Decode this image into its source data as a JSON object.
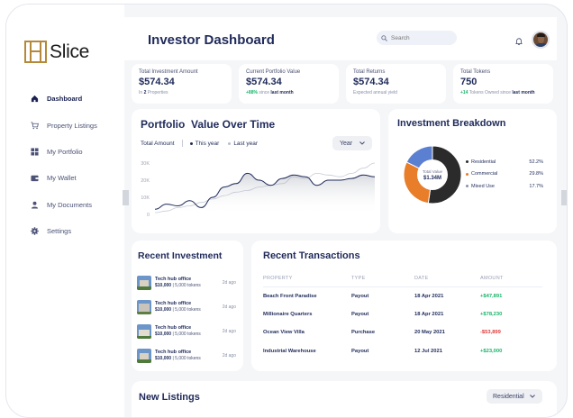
{
  "app": {
    "name": "Slice"
  },
  "sidebar": {
    "items": [
      {
        "label": "Dashboard",
        "icon": "home-icon",
        "active": true
      },
      {
        "label": "Property Listings",
        "icon": "cart-icon",
        "active": false
      },
      {
        "label": "My Portfolio",
        "icon": "grid-icon",
        "active": false
      },
      {
        "label": "My Wallet",
        "icon": "wallet-icon",
        "active": false
      },
      {
        "label": "My Documents",
        "icon": "user-icon",
        "active": false
      },
      {
        "label": "Settings",
        "icon": "gear-icon",
        "active": false
      }
    ]
  },
  "header": {
    "title": "Investor Dashboard",
    "search_placeholder": "Search"
  },
  "stats": [
    {
      "label": "Total Investment Amount",
      "value": "$574.34",
      "sub_prefix": "In",
      "sub_bold": "2",
      "sub_suffix": "Properties"
    },
    {
      "label": "Current Portfolio Value",
      "value": "$574.34",
      "sub_up": "+88%",
      "sub_mid": "since",
      "sub_bold": "last month"
    },
    {
      "label": "Total Returns",
      "value": "$574.34",
      "sub_text": "Expected annual yield"
    },
    {
      "label": "Total Tokens",
      "value": "750",
      "sub_up": "+14",
      "sub_mid": "Tokens Owned since",
      "sub_bold": "last month"
    }
  ],
  "portfolio_chart": {
    "title": "Portfolio  Value Over Time",
    "legend_label": "Total Amount",
    "period_select": "Year",
    "colors": {
      "this_year": "#1f2a5a",
      "last_year": "#c7cbd6"
    }
  },
  "chart_data": {
    "type": "area",
    "series": [
      {
        "name": "This year",
        "values": [
          3,
          6,
          5,
          8,
          4,
          10,
          16,
          18,
          24,
          20,
          17,
          21,
          23,
          22,
          17,
          20,
          20,
          21,
          23,
          22
        ]
      },
      {
        "name": "Last year",
        "values": [
          1,
          2,
          4,
          5,
          7,
          9,
          11,
          13,
          14,
          16,
          17,
          18,
          22,
          21,
          24,
          23,
          22,
          24,
          27,
          30
        ]
      }
    ],
    "y_ticks": [
      "30K",
      "20K",
      "10K",
      "0"
    ],
    "ylim": [
      0,
      30
    ]
  },
  "breakdown": {
    "title": "Investment Breakdown",
    "center_label": "Total Value",
    "center_value": "$1.34M",
    "slices": [
      {
        "name": "Residential",
        "value": 52.2,
        "label": "52.2%",
        "color": "#2b2b2b"
      },
      {
        "name": "Commercial",
        "value": 29.8,
        "label": "29.8%",
        "color": "#e87d2a"
      },
      {
        "name": "Mixed Use",
        "value": 17.7,
        "label": "17.7%",
        "color": "#5b7fd1"
      }
    ]
  },
  "recent_investment": {
    "title": "Recent Investment",
    "items": [
      {
        "name": "Tech hub office",
        "price": "$10,000",
        "tokens": "| 5,000 tokens",
        "time": "2d ago"
      },
      {
        "name": "Tech hub office",
        "price": "$10,000",
        "tokens": "| 5,000 tokens",
        "time": "2d ago"
      },
      {
        "name": "Tech hub office",
        "price": "$10,000",
        "tokens": "| 5,000 tokens",
        "time": "2d ago"
      },
      {
        "name": "Tech hub office",
        "price": "$10,000",
        "tokens": "| 5,000 tokens",
        "time": "2d ago"
      }
    ]
  },
  "transactions": {
    "title": "Recent Transactions",
    "columns": [
      "PROPERTY",
      "TYPE",
      "DATE",
      "AMOUNT"
    ],
    "rows": [
      {
        "property": "Beach Front Paradise",
        "type": "Payout",
        "date": "18 Apr 2021",
        "amount": "+$47,891",
        "positive": true
      },
      {
        "property": "Millionaire Quarters",
        "type": "Payout",
        "date": "18 Apr 2021",
        "amount": "+$78,230",
        "positive": true
      },
      {
        "property": "Ocean View Villa",
        "type": "Purchase",
        "date": "20 May 2021",
        "amount": "-$53,899",
        "positive": false
      },
      {
        "property": "Industrial Warehouse",
        "type": "Payout",
        "date": "12 Jul 2021",
        "amount": "+$23,000",
        "positive": true
      }
    ]
  },
  "new_listings": {
    "title": "New Listings",
    "filter": "Residential"
  }
}
